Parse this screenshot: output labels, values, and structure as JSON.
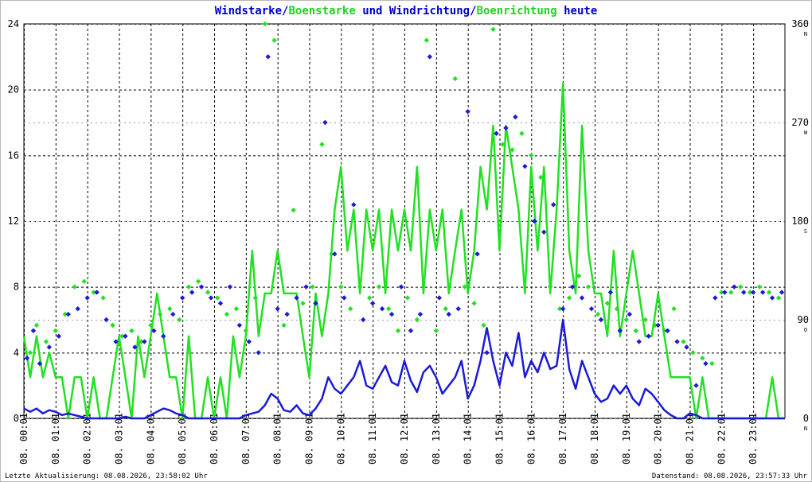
{
  "title": {
    "parts": [
      {
        "text": "Windstarke",
        "color": "#0000c8"
      },
      {
        "text": "/",
        "color": "#0000c8"
      },
      {
        "text": "Boenstarke",
        "color": "#22d022"
      },
      {
        "text": " und ",
        "color": "#0000c8"
      },
      {
        "text": "Windrichtung",
        "color": "#0000c8"
      },
      {
        "text": "/",
        "color": "#0000c8"
      },
      {
        "text": "Boenrichtung",
        "color": "#22d022"
      },
      {
        "text": " heute",
        "color": "#0000c8"
      }
    ]
  },
  "footer": {
    "left": "Letzte Aktualisierung: 08.08.2026, 23:58:02 Uhr",
    "right": "Datenstand: 08.08.2026, 23:57:33 Uhr"
  },
  "colors": {
    "wind": "#1a1ad8",
    "gust": "#22e022",
    "grid": "#000000",
    "axis": "#000000"
  },
  "chart_data": {
    "type": "line",
    "x_unit": "hours",
    "xlim": [
      0,
      24
    ],
    "x_tick_labels": [
      "08. 00:01",
      "08. 01:01",
      "08. 02:01",
      "08. 03:01",
      "08. 04:01",
      "08. 05:01",
      "08. 06:01",
      "08. 07:01",
      "08. 08:01",
      "08. 09:01",
      "08. 10:01",
      "08. 11:01",
      "08. 12:01",
      "08. 13:01",
      "08. 14:01",
      "08. 15:01",
      "08. 16:01",
      "08. 17:01",
      "08. 18:01",
      "08. 19:01",
      "08. 20:01",
      "08. 21:01",
      "08. 22:01",
      "08. 23:01"
    ],
    "y_left": {
      "ylim": [
        0,
        24
      ],
      "ticks": [
        "0",
        "4",
        "8",
        "12",
        "16",
        "20",
        "24"
      ]
    },
    "y_right": {
      "ylim": [
        0,
        360
      ],
      "ticks": [
        "0",
        "90",
        "180",
        "270",
        "360"
      ],
      "direction_labels": [
        "N",
        "O",
        "S",
        "W",
        "N"
      ]
    },
    "grid": true,
    "series": [
      {
        "name": "Windstarke",
        "axis": "left",
        "style": "line",
        "x": [
          0,
          0.2,
          0.4,
          0.6,
          0.8,
          1,
          1.2,
          1.4,
          1.6,
          1.8,
          2,
          2.2,
          2.4,
          2.6,
          2.8,
          3,
          3.2,
          3.4,
          3.6,
          3.8,
          4,
          4.2,
          4.4,
          4.6,
          4.8,
          5,
          5.2,
          5.4,
          5.6,
          5.8,
          6,
          6.2,
          6.4,
          6.6,
          6.8,
          7,
          7.2,
          7.4,
          7.6,
          7.8,
          8,
          8.2,
          8.4,
          8.6,
          8.8,
          9,
          9.2,
          9.4,
          9.6,
          9.8,
          10,
          10.2,
          10.4,
          10.6,
          10.8,
          11,
          11.2,
          11.4,
          11.6,
          11.8,
          12,
          12.2,
          12.4,
          12.6,
          12.8,
          13,
          13.2,
          13.4,
          13.6,
          13.8,
          14,
          14.2,
          14.4,
          14.6,
          14.8,
          15,
          15.2,
          15.4,
          15.6,
          15.8,
          16,
          16.2,
          16.4,
          16.6,
          16.8,
          17,
          17.2,
          17.4,
          17.6,
          17.8,
          18,
          18.2,
          18.4,
          18.6,
          18.8,
          19,
          19.2,
          19.4,
          19.6,
          19.8,
          20,
          20.2,
          20.4,
          20.6,
          20.8,
          21,
          21.2,
          21.4,
          21.6,
          21.8,
          22,
          22.2,
          22.4,
          22.6,
          22.8,
          23,
          23.2,
          23.4,
          23.6,
          23.8,
          24
        ],
        "y": [
          0.6,
          0.4,
          0.6,
          0.3,
          0.5,
          0.4,
          0.2,
          0.3,
          0.2,
          0.1,
          0,
          0,
          0,
          0,
          0,
          0,
          0.1,
          0,
          0,
          0,
          0.2,
          0.4,
          0.6,
          0.5,
          0.3,
          0.2,
          0,
          0,
          0,
          0,
          0,
          0,
          0,
          0,
          0,
          0.2,
          0.3,
          0.4,
          0.8,
          1.5,
          1.2,
          0.5,
          0.4,
          0.8,
          0.3,
          0.2,
          0.6,
          1.2,
          2.5,
          1.8,
          1.5,
          2,
          2.5,
          3.5,
          2,
          1.8,
          2.5,
          3.2,
          2.2,
          2,
          3.5,
          2.3,
          1.6,
          2.8,
          3.2,
          2.5,
          1.5,
          2,
          2.5,
          3.5,
          1.2,
          2,
          3.5,
          5.5,
          3.5,
          2,
          4,
          3.2,
          5.2,
          2.5,
          3.5,
          2.8,
          4,
          3,
          3.2,
          6,
          3,
          1.8,
          3.5,
          2.5,
          1.5,
          1,
          1.2,
          2,
          1.5,
          2,
          1.2,
          0.8,
          1.8,
          1.5,
          1,
          0.5,
          0.2,
          0,
          0,
          0.3,
          0.2,
          0,
          0,
          0,
          0,
          0,
          0,
          0,
          0,
          0,
          0,
          0,
          0,
          0,
          0
        ]
      },
      {
        "name": "Boenstarke",
        "axis": "left",
        "style": "line",
        "x": [
          0,
          0.2,
          0.4,
          0.6,
          0.8,
          1,
          1.2,
          1.4,
          1.6,
          1.8,
          2,
          2.2,
          2.4,
          2.6,
          2.8,
          3,
          3.2,
          3.4,
          3.6,
          3.8,
          4,
          4.2,
          4.4,
          4.6,
          4.8,
          5,
          5.2,
          5.4,
          5.6,
          5.8,
          6,
          6.2,
          6.4,
          6.6,
          6.8,
          7,
          7.2,
          7.4,
          7.6,
          7.8,
          8,
          8.2,
          8.4,
          8.6,
          8.8,
          9,
          9.2,
          9.4,
          9.6,
          9.8,
          10,
          10.2,
          10.4,
          10.6,
          10.8,
          11,
          11.2,
          11.4,
          11.6,
          11.8,
          12,
          12.2,
          12.4,
          12.6,
          12.8,
          13,
          13.2,
          13.4,
          13.6,
          13.8,
          14,
          14.2,
          14.4,
          14.6,
          14.8,
          15,
          15.2,
          15.4,
          15.6,
          15.8,
          16,
          16.2,
          16.4,
          16.6,
          16.8,
          17,
          17.2,
          17.4,
          17.6,
          17.8,
          18,
          18.2,
          18.4,
          18.6,
          18.8,
          19,
          19.2,
          19.4,
          19.6,
          19.8,
          20,
          20.2,
          20.4,
          20.6,
          20.8,
          21,
          21.2,
          21.4,
          21.6,
          21.8,
          22,
          22.2,
          22.4,
          22.6,
          22.8,
          23,
          23.2,
          23.4,
          23.6,
          23.8,
          24
        ],
        "y": [
          5,
          2.5,
          5,
          2.5,
          4,
          2.5,
          2.5,
          0,
          2.5,
          2.5,
          0,
          2.5,
          0,
          0,
          2.5,
          5,
          2.5,
          0,
          5,
          2.5,
          5,
          7.6,
          5,
          2.5,
          2.5,
          0,
          5,
          0,
          0,
          2.5,
          0,
          2.5,
          0,
          5,
          2.5,
          5,
          10.2,
          5,
          7.6,
          7.6,
          10.2,
          7.6,
          7.6,
          7.6,
          5,
          2.5,
          7.6,
          5,
          7.6,
          12.7,
          15.3,
          10.2,
          12.7,
          7.6,
          12.7,
          10.2,
          12.7,
          7.6,
          12.7,
          10.2,
          12.7,
          10.2,
          15.3,
          7.6,
          12.7,
          10.2,
          12.7,
          7.6,
          10.2,
          12.7,
          7.6,
          10.2,
          15.3,
          12.7,
          17.8,
          10.2,
          17.8,
          15.3,
          12.7,
          7.6,
          15.3,
          10.2,
          15.3,
          7.6,
          12.7,
          20.4,
          10.2,
          7.6,
          17.8,
          10.2,
          7.6,
          7.6,
          5,
          10.2,
          5,
          7.6,
          10.2,
          7.6,
          5,
          5,
          7.6,
          5,
          2.5,
          2.5,
          2.5,
          2.5,
          0,
          2.5,
          0,
          0,
          0,
          0,
          0,
          0,
          0,
          0,
          0,
          0,
          2.5,
          0,
          0
        ]
      },
      {
        "name": "Windrichtung",
        "axis": "right",
        "style": "points",
        "x": [
          0.1,
          0.3,
          0.5,
          0.8,
          1.1,
          1.4,
          1.7,
          2,
          2.3,
          2.6,
          2.9,
          3.2,
          3.5,
          3.8,
          4.1,
          4.4,
          4.7,
          5,
          5.3,
          5.6,
          5.9,
          6.2,
          6.5,
          6.8,
          7.1,
          7.4,
          7.7,
          8,
          8.3,
          8.6,
          8.9,
          9.2,
          9.5,
          9.8,
          10.1,
          10.4,
          10.7,
          11,
          11.3,
          11.6,
          11.9,
          12.2,
          12.5,
          12.8,
          13.1,
          13.4,
          13.7,
          14,
          14.3,
          14.6,
          14.9,
          15.2,
          15.5,
          15.8,
          16.1,
          16.4,
          16.7,
          17,
          17.3,
          17.6,
          17.9,
          18.2,
          18.5,
          18.8,
          19.1,
          19.4,
          19.7,
          20,
          20.3,
          20.6,
          20.9,
          21.2,
          21.5,
          21.8,
          22.1,
          22.4,
          22.7,
          23,
          23.3,
          23.6,
          23.9
        ],
        "y": [
          55,
          80,
          50,
          65,
          75,
          95,
          100,
          110,
          115,
          90,
          70,
          75,
          65,
          70,
          80,
          75,
          95,
          110,
          115,
          120,
          110,
          105,
          120,
          85,
          70,
          60,
          330,
          100,
          95,
          110,
          120,
          105,
          270,
          150,
          110,
          195,
          90,
          105,
          100,
          95,
          120,
          80,
          95,
          330,
          110,
          95,
          100,
          280,
          150,
          60,
          260,
          265,
          275,
          230,
          180,
          170,
          195,
          100,
          120,
          110,
          100,
          90,
          115,
          80,
          95,
          70,
          75,
          85,
          80,
          70,
          65,
          30,
          50,
          110,
          115,
          120,
          115,
          115,
          115,
          110,
          115
        ]
      },
      {
        "name": "Boenrichtung",
        "axis": "right",
        "style": "points",
        "x": [
          0.2,
          0.4,
          0.7,
          1,
          1.3,
          1.6,
          1.9,
          2.2,
          2.5,
          2.8,
          3.1,
          3.4,
          3.7,
          4,
          4.3,
          4.6,
          4.9,
          5.2,
          5.5,
          5.8,
          6.1,
          6.4,
          6.7,
          7,
          7.3,
          7.6,
          7.9,
          8.2,
          8.5,
          8.8,
          9.1,
          9.4,
          9.7,
          10,
          10.3,
          10.6,
          10.9,
          11.2,
          11.5,
          11.8,
          12.1,
          12.4,
          12.7,
          13,
          13.3,
          13.6,
          13.9,
          14.2,
          14.5,
          14.8,
          15.1,
          15.4,
          15.7,
          16,
          16.3,
          16.6,
          16.9,
          17.2,
          17.5,
          17.8,
          18.1,
          18.4,
          18.7,
          19,
          19.3,
          19.6,
          19.9,
          20.2,
          20.5,
          20.8,
          21.1,
          21.4,
          21.7,
          22,
          22.3,
          22.6,
          22.9,
          23.2,
          23.5,
          23.8
        ],
        "y": [
          60,
          85,
          70,
          80,
          95,
          120,
          125,
          115,
          110,
          85,
          75,
          80,
          70,
          85,
          95,
          100,
          90,
          120,
          125,
          115,
          110,
          95,
          100,
          80,
          110,
          360,
          345,
          85,
          190,
          105,
          120,
          250,
          150,
          120,
          100,
          120,
          110,
          120,
          100,
          80,
          110,
          90,
          345,
          80,
          100,
          310,
          120,
          105,
          85,
          355,
          250,
          245,
          260,
          240,
          220,
          120,
          100,
          110,
          130,
          120,
          95,
          105,
          100,
          90,
          80,
          90,
          85,
          80,
          100,
          70,
          60,
          55,
          50,
          115,
          115,
          120,
          115,
          120,
          115,
          110
        ]
      }
    ]
  }
}
